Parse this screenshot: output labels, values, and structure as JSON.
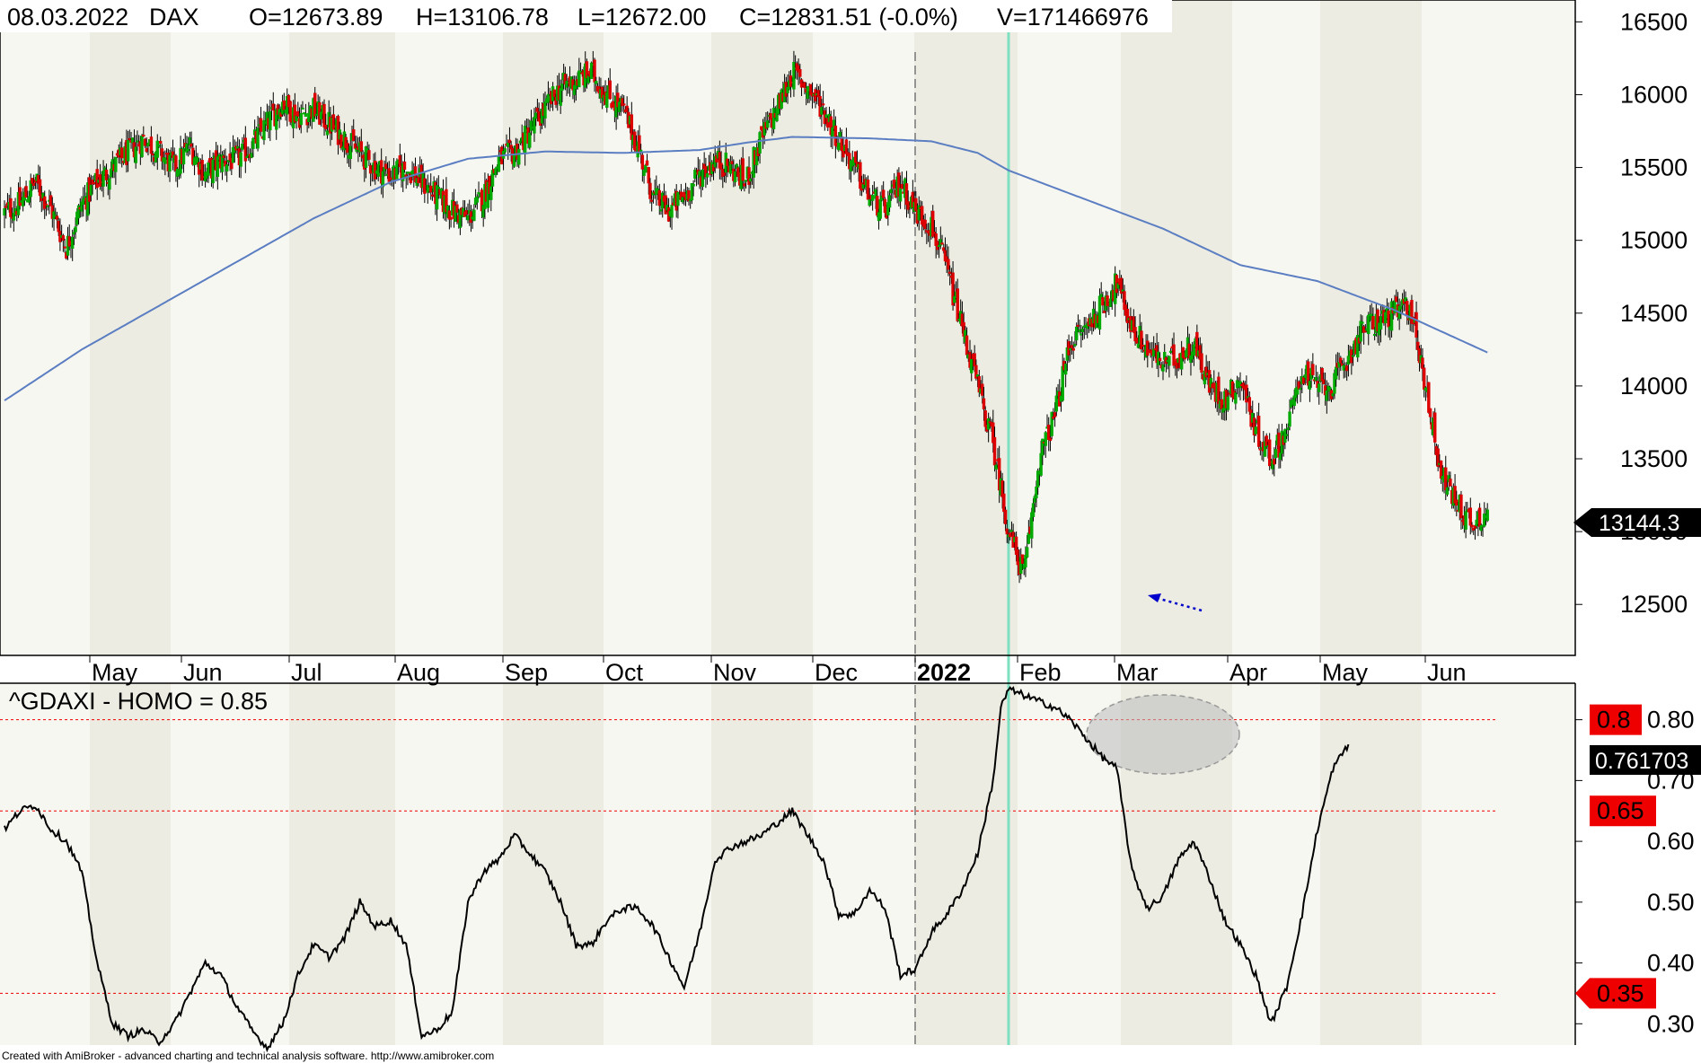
{
  "header": {
    "date": "08.03.2022",
    "symbol": "DAX",
    "open": "O=12673.89",
    "high": "H=13106.78",
    "low": "L=12672.00",
    "close": "C=12831.51 (-0.0%)",
    "volume": "V=171466976"
  },
  "footer": "Created with AmiBroker - advanced charting and technical analysis software. http://www.amibroker.com",
  "colors": {
    "up": "#00aa00",
    "down": "#dd0000",
    "ma": "#5b7ec2",
    "cursor": "#7ee0c0",
    "marker_red": "#ee0000",
    "band_a": "#f7f7f2",
    "band_b": "#ecece2"
  },
  "chart_data": [
    {
      "type": "candlestick",
      "symbol": "DAX",
      "y_ticks": [
        12500,
        13000,
        13500,
        14000,
        14500,
        15000,
        15500,
        16000,
        16500
      ],
      "ylim": [
        12150,
        16650
      ],
      "x_labels": [
        "May",
        "Jun",
        "Jul",
        "Aug",
        "Sep",
        "Oct",
        "Nov",
        "Dec",
        "2022",
        "Feb",
        "Mar",
        "Apr",
        "May",
        "Jun"
      ],
      "last_value_label": "13144.3",
      "close_anchors": [
        [
          0,
          15190
        ],
        [
          10,
          15250
        ],
        [
          20,
          15400
        ],
        [
          30,
          15220
        ],
        [
          40,
          14950
        ],
        [
          50,
          15250
        ],
        [
          60,
          15400
        ],
        [
          70,
          15500
        ],
        [
          80,
          15600
        ],
        [
          90,
          15700
        ],
        [
          100,
          15600
        ],
        [
          110,
          15500
        ],
        [
          120,
          15650
        ],
        [
          130,
          15450
        ],
        [
          140,
          15550
        ],
        [
          150,
          15550
        ],
        [
          160,
          15650
        ],
        [
          170,
          15800
        ],
        [
          180,
          15950
        ],
        [
          190,
          15850
        ],
        [
          200,
          15900
        ],
        [
          210,
          15800
        ],
        [
          220,
          15700
        ],
        [
          230,
          15600
        ],
        [
          240,
          15500
        ],
        [
          250,
          15450
        ],
        [
          260,
          15500
        ],
        [
          270,
          15400
        ],
        [
          280,
          15300
        ],
        [
          290,
          15200
        ],
        [
          300,
          15150
        ],
        [
          310,
          15300
        ],
        [
          320,
          15550
        ],
        [
          330,
          15600
        ],
        [
          340,
          15750
        ],
        [
          350,
          15900
        ],
        [
          360,
          16050
        ],
        [
          370,
          16100
        ],
        [
          380,
          16150
        ],
        [
          390,
          16000
        ],
        [
          400,
          15900
        ],
        [
          410,
          15650
        ],
        [
          420,
          15300
        ],
        [
          430,
          15200
        ],
        [
          440,
          15300
        ],
        [
          450,
          15450
        ],
        [
          460,
          15550
        ],
        [
          470,
          15500
        ],
        [
          480,
          15400
        ],
        [
          490,
          15700
        ],
        [
          500,
          15900
        ],
        [
          510,
          16150
        ],
        [
          520,
          16050
        ],
        [
          530,
          15900
        ],
        [
          540,
          15700
        ],
        [
          550,
          15500
        ],
        [
          560,
          15300
        ],
        [
          570,
          15200
        ],
        [
          580,
          15400
        ],
        [
          590,
          15200
        ],
        [
          600,
          15100
        ],
        [
          610,
          14800
        ],
        [
          620,
          14400
        ],
        [
          630,
          14000
        ],
        [
          640,
          13600
        ],
        [
          650,
          13000
        ],
        [
          660,
          12700
        ],
        [
          670,
          13500
        ],
        [
          680,
          13800
        ],
        [
          690,
          14300
        ],
        [
          700,
          14400
        ],
        [
          710,
          14550
        ],
        [
          720,
          14700
        ],
        [
          730,
          14400
        ],
        [
          740,
          14250
        ],
        [
          750,
          14150
        ],
        [
          760,
          14200
        ],
        [
          770,
          14300
        ],
        [
          780,
          14000
        ],
        [
          790,
          13900
        ],
        [
          800,
          14050
        ],
        [
          810,
          13700
        ],
        [
          820,
          13500
        ],
        [
          830,
          13700
        ],
        [
          840,
          14100
        ],
        [
          850,
          14000
        ],
        [
          860,
          14000
        ],
        [
          870,
          14200
        ],
        [
          880,
          14400
        ],
        [
          890,
          14450
        ],
        [
          900,
          14500
        ],
        [
          910,
          14550
        ],
        [
          920,
          14000
        ],
        [
          930,
          13400
        ],
        [
          940,
          13200
        ],
        [
          950,
          13050
        ],
        [
          960,
          13150
        ]
      ],
      "ma200_anchors": [
        [
          0,
          13900
        ],
        [
          50,
          14250
        ],
        [
          100,
          14550
        ],
        [
          150,
          14850
        ],
        [
          200,
          15150
        ],
        [
          250,
          15400
        ],
        [
          300,
          15560
        ],
        [
          350,
          15610
        ],
        [
          400,
          15600
        ],
        [
          450,
          15620
        ],
        [
          480,
          15670
        ],
        [
          510,
          15710
        ],
        [
          560,
          15700
        ],
        [
          600,
          15680
        ],
        [
          630,
          15600
        ],
        [
          650,
          15480
        ],
        [
          700,
          15280
        ],
        [
          750,
          15080
        ],
        [
          800,
          14830
        ],
        [
          850,
          14720
        ],
        [
          900,
          14520
        ],
        [
          960,
          14230
        ]
      ]
    },
    {
      "type": "line",
      "title": "^GDAXI - HOMO = 0.85",
      "y_ticks": [
        0.3,
        0.4,
        0.5,
        0.6,
        0.7,
        0.8
      ],
      "y_tick_labels": [
        "0.30",
        "0.40",
        "0.50",
        "0.60",
        "0.70",
        "0.80"
      ],
      "ylim": [
        0.265,
        0.86
      ],
      "levels": [
        0.8,
        0.65,
        0.35
      ],
      "level_labels": [
        "0.8",
        "0.65",
        "0.35"
      ],
      "last_value_label": "0.761703",
      "values": [
        [
          0,
          0.62
        ],
        [
          10,
          0.65
        ],
        [
          20,
          0.66
        ],
        [
          30,
          0.62
        ],
        [
          40,
          0.6
        ],
        [
          50,
          0.55
        ],
        [
          60,
          0.4
        ],
        [
          70,
          0.3
        ],
        [
          80,
          0.28
        ],
        [
          90,
          0.29
        ],
        [
          100,
          0.27
        ],
        [
          110,
          0.3
        ],
        [
          120,
          0.35
        ],
        [
          130,
          0.4
        ],
        [
          140,
          0.38
        ],
        [
          150,
          0.33
        ],
        [
          160,
          0.29
        ],
        [
          170,
          0.26
        ],
        [
          180,
          0.3
        ],
        [
          190,
          0.38
        ],
        [
          200,
          0.43
        ],
        [
          210,
          0.41
        ],
        [
          220,
          0.44
        ],
        [
          230,
          0.5
        ],
        [
          240,
          0.46
        ],
        [
          250,
          0.47
        ],
        [
          260,
          0.43
        ],
        [
          270,
          0.28
        ],
        [
          280,
          0.29
        ],
        [
          290,
          0.32
        ],
        [
          300,
          0.5
        ],
        [
          310,
          0.55
        ],
        [
          320,
          0.57
        ],
        [
          330,
          0.61
        ],
        [
          340,
          0.58
        ],
        [
          350,
          0.55
        ],
        [
          360,
          0.5
        ],
        [
          370,
          0.43
        ],
        [
          380,
          0.43
        ],
        [
          390,
          0.47
        ],
        [
          400,
          0.49
        ],
        [
          410,
          0.49
        ],
        [
          420,
          0.46
        ],
        [
          430,
          0.41
        ],
        [
          440,
          0.36
        ],
        [
          450,
          0.45
        ],
        [
          460,
          0.57
        ],
        [
          470,
          0.59
        ],
        [
          480,
          0.6
        ],
        [
          490,
          0.61
        ],
        [
          500,
          0.63
        ],
        [
          510,
          0.65
        ],
        [
          520,
          0.61
        ],
        [
          530,
          0.57
        ],
        [
          540,
          0.48
        ],
        [
          550,
          0.48
        ],
        [
          560,
          0.52
        ],
        [
          570,
          0.49
        ],
        [
          580,
          0.38
        ],
        [
          590,
          0.39
        ],
        [
          600,
          0.45
        ],
        [
          610,
          0.48
        ],
        [
          620,
          0.52
        ],
        [
          630,
          0.58
        ],
        [
          640,
          0.7
        ],
        [
          645,
          0.82
        ],
        [
          650,
          0.85
        ],
        [
          660,
          0.84
        ],
        [
          670,
          0.83
        ],
        [
          680,
          0.82
        ],
        [
          690,
          0.8
        ],
        [
          700,
          0.77
        ],
        [
          710,
          0.74
        ],
        [
          720,
          0.72
        ],
        [
          730,
          0.55
        ],
        [
          740,
          0.49
        ],
        [
          750,
          0.51
        ],
        [
          760,
          0.57
        ],
        [
          770,
          0.6
        ],
        [
          780,
          0.54
        ],
        [
          790,
          0.47
        ],
        [
          800,
          0.43
        ],
        [
          810,
          0.38
        ],
        [
          820,
          0.3
        ],
        [
          830,
          0.36
        ],
        [
          840,
          0.48
        ],
        [
          850,
          0.62
        ],
        [
          860,
          0.72
        ],
        [
          870,
          0.76
        ]
      ],
      "cursor_bar": 650
    }
  ]
}
